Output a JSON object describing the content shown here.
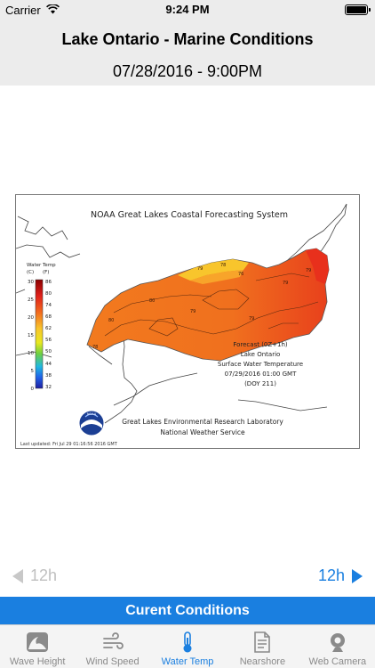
{
  "status_bar": {
    "carrier": "Carrier",
    "time": "9:24 PM",
    "icons": [
      "wifi-icon",
      "battery-icon"
    ]
  },
  "header": {
    "title": "Lake Ontario - Marine Conditions",
    "datetime": "07/28/2016 - 9:00PM"
  },
  "map": {
    "title": "NOAA Great Lakes Coastal Forecasting System",
    "legend": {
      "title": "Water Temp",
      "units_c": "(C)",
      "units_f": "(F)",
      "celsius_ticks": [
        "30",
        "25",
        "20",
        "15",
        "10",
        "5",
        "0"
      ],
      "fahrenheit_ticks": [
        "86",
        "80",
        "74",
        "68",
        "62",
        "56",
        "50",
        "44",
        "38",
        "32"
      ]
    },
    "contour_labels": [
      "78",
      "80",
      "80",
      "79",
      "78",
      "76",
      "79",
      "79",
      "79",
      "79"
    ],
    "forecast_lines": [
      "Forecast (0Z+1h)",
      "Lake Ontario",
      "Surface Water Temperature",
      "07/29/2016 01:00 GMT",
      "(DOY 211)"
    ],
    "lab_lines": [
      "Great Lakes Environmental Research Laboratory",
      "National Weather Service"
    ],
    "logo_text": "NOAA",
    "last_updated": "Last updated: Fri Jul 29 01:16:56 2016 GMT",
    "colors": {
      "lake_main": "#f26a1e",
      "lake_north_shore": "#f8c52c",
      "lake_east": "#e8381c"
    }
  },
  "navigation": {
    "prev_label": "12h",
    "next_label": "12h",
    "prev_enabled": false,
    "next_enabled": true
  },
  "current_button": "Curent Conditions",
  "tabs": [
    {
      "label": "Wave Height",
      "icon": "wave-icon",
      "active": false
    },
    {
      "label": "Wind Speed",
      "icon": "wind-icon",
      "active": false
    },
    {
      "label": "Water Temp",
      "icon": "thermometer-icon",
      "active": true
    },
    {
      "label": "Nearshore",
      "icon": "document-icon",
      "active": false
    },
    {
      "label": "Web Camera",
      "icon": "webcam-icon",
      "active": false
    }
  ],
  "accent_color": "#1a7fe0"
}
